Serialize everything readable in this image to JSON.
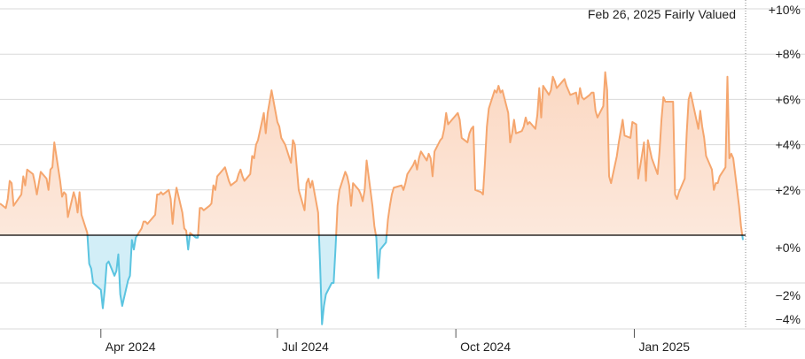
{
  "header": {
    "date": "Feb 26, 2025",
    "status": "Fairly Valued"
  },
  "colors": {
    "above_line": "#f5a66e",
    "above_fill_top": "#fbd8c2",
    "above_fill_bottom": "#fdf1ea",
    "below_line": "#5bc4e0",
    "below_fill": "#d2eef7",
    "grid": "#d9d9d9",
    "zero_line": "#000000"
  },
  "chart_data": {
    "type": "area",
    "title": "",
    "xlabel": "",
    "ylabel": "",
    "ylim": [
      -4,
      10
    ],
    "y_unit": "%",
    "grid": true,
    "y_ticks": [
      {
        "value": 10,
        "label": "+10%"
      },
      {
        "value": 8,
        "label": "+8%"
      },
      {
        "value": 6,
        "label": "+6%"
      },
      {
        "value": 4,
        "label": "+4%"
      },
      {
        "value": 2,
        "label": "+2%"
      },
      {
        "value": 0,
        "label": "+0%"
      },
      {
        "value": -2,
        "label": "−2%"
      },
      {
        "value": -4,
        "label": "−4%"
      }
    ],
    "x_ticks": [
      {
        "date": "2024-04-01",
        "label": "Apr 2024"
      },
      {
        "date": "2024-07-01",
        "label": "Jul 2024"
      },
      {
        "date": "2024-10-01",
        "label": "Oct 2024"
      },
      {
        "date": "2025-01-01",
        "label": "Jan 2025"
      }
    ],
    "series": [
      {
        "values": [
          [
            "2024-02-09",
            1.4
          ],
          [
            "2024-02-12",
            1.2
          ],
          [
            "2024-02-13",
            1.6
          ],
          [
            "2024-02-14",
            2.4
          ],
          [
            "2024-02-15",
            2.3
          ],
          [
            "2024-02-16",
            1.3
          ],
          [
            "2024-02-20",
            1.8
          ],
          [
            "2024-02-21",
            2.6
          ],
          [
            "2024-02-22",
            2.2
          ],
          [
            "2024-02-23",
            2.9
          ],
          [
            "2024-02-26",
            2.7
          ],
          [
            "2024-02-27",
            2.3
          ],
          [
            "2024-02-28",
            1.8
          ],
          [
            "2024-02-29",
            2.3
          ],
          [
            "2024-03-01",
            2.8
          ],
          [
            "2024-03-04",
            2.5
          ],
          [
            "2024-03-05",
            2.0
          ],
          [
            "2024-03-06",
            2.9
          ],
          [
            "2024-03-07",
            3.0
          ],
          [
            "2024-03-08",
            4.1
          ],
          [
            "2024-03-11",
            2.4
          ],
          [
            "2024-03-12",
            1.7
          ],
          [
            "2024-03-13",
            1.9
          ],
          [
            "2024-03-14",
            1.8
          ],
          [
            "2024-03-15",
            0.8
          ],
          [
            "2024-03-18",
            1.9
          ],
          [
            "2024-03-19",
            1.6
          ],
          [
            "2024-03-20",
            1.0
          ],
          [
            "2024-03-21",
            1.9
          ],
          [
            "2024-03-22",
            0.9
          ],
          [
            "2024-03-25",
            0.1
          ],
          [
            "2024-03-26",
            -1.2
          ],
          [
            "2024-03-27",
            -1.4
          ],
          [
            "2024-03-28",
            -2.0
          ],
          [
            "2024-04-01",
            -2.3
          ],
          [
            "2024-04-02",
            -3.1
          ],
          [
            "2024-04-03",
            -2.3
          ],
          [
            "2024-04-04",
            -1.2
          ],
          [
            "2024-04-05",
            -1.1
          ],
          [
            "2024-04-08",
            -1.7
          ],
          [
            "2024-04-09",
            -1.5
          ],
          [
            "2024-04-10",
            -0.8
          ],
          [
            "2024-04-11",
            -2.5
          ],
          [
            "2024-04-12",
            -3.0
          ],
          [
            "2024-04-15",
            -1.9
          ],
          [
            "2024-04-16",
            -1.7
          ],
          [
            "2024-04-17",
            -0.2
          ],
          [
            "2024-04-18",
            -0.6
          ],
          [
            "2024-04-19",
            -0.1
          ],
          [
            "2024-04-22",
            0.3
          ],
          [
            "2024-04-23",
            0.6
          ],
          [
            "2024-04-24",
            0.6
          ],
          [
            "2024-04-25",
            0.5
          ],
          [
            "2024-04-26",
            0.6
          ],
          [
            "2024-04-29",
            0.9
          ],
          [
            "2024-04-30",
            1.8
          ],
          [
            "2024-05-01",
            1.8
          ],
          [
            "2024-05-02",
            1.9
          ],
          [
            "2024-05-03",
            1.8
          ],
          [
            "2024-05-06",
            2.0
          ],
          [
            "2024-05-07",
            1.6
          ],
          [
            "2024-05-08",
            0.5
          ],
          [
            "2024-05-09",
            1.5
          ],
          [
            "2024-05-10",
            2.1
          ],
          [
            "2024-05-13",
            1.0
          ],
          [
            "2024-05-14",
            0.3
          ],
          [
            "2024-05-15",
            0.2
          ],
          [
            "2024-05-16",
            -0.6
          ],
          [
            "2024-05-17",
            0.1
          ],
          [
            "2024-05-20",
            -0.1
          ],
          [
            "2024-05-21",
            -0.1
          ],
          [
            "2024-05-22",
            1.2
          ],
          [
            "2024-05-23",
            1.2
          ],
          [
            "2024-05-24",
            1.1
          ],
          [
            "2024-05-27",
            1.3
          ],
          [
            "2024-05-28",
            1.4
          ],
          [
            "2024-05-29",
            2.2
          ],
          [
            "2024-05-30",
            2.0
          ],
          [
            "2024-05-31",
            2.6
          ],
          [
            "2024-06-03",
            2.9
          ],
          [
            "2024-06-04",
            3.0
          ],
          [
            "2024-06-05",
            2.7
          ],
          [
            "2024-06-06",
            2.4
          ],
          [
            "2024-06-07",
            2.2
          ],
          [
            "2024-06-10",
            2.4
          ],
          [
            "2024-06-11",
            2.7
          ],
          [
            "2024-06-12",
            2.9
          ],
          [
            "2024-06-13",
            2.6
          ],
          [
            "2024-06-14",
            2.4
          ],
          [
            "2024-06-17",
            2.7
          ],
          [
            "2024-06-18",
            3.5
          ],
          [
            "2024-06-19",
            3.4
          ],
          [
            "2024-06-20",
            4.0
          ],
          [
            "2024-06-21",
            4.2
          ],
          [
            "2024-06-24",
            5.4
          ],
          [
            "2024-06-25",
            4.5
          ],
          [
            "2024-06-26",
            5.4
          ],
          [
            "2024-06-27",
            5.9
          ],
          [
            "2024-06-28",
            6.4
          ],
          [
            "2024-07-01",
            5.0
          ],
          [
            "2024-07-02",
            4.8
          ],
          [
            "2024-07-03",
            4.3
          ],
          [
            "2024-07-05",
            4.0
          ],
          [
            "2024-07-08",
            3.2
          ],
          [
            "2024-07-09",
            4.2
          ],
          [
            "2024-07-10",
            4.0
          ],
          [
            "2024-07-11",
            3.0
          ],
          [
            "2024-07-12",
            2.0
          ],
          [
            "2024-07-15",
            1.1
          ],
          [
            "2024-07-16",
            2.3
          ],
          [
            "2024-07-17",
            2.5
          ],
          [
            "2024-07-18",
            2.1
          ],
          [
            "2024-07-19",
            2.4
          ],
          [
            "2024-07-22",
            1.0
          ],
          [
            "2024-07-23",
            -1.2
          ],
          [
            "2024-07-24",
            -3.8
          ],
          [
            "2024-07-25",
            -3.0
          ],
          [
            "2024-07-26",
            -2.5
          ],
          [
            "2024-07-29",
            -2.0
          ],
          [
            "2024-07-30",
            -2.0
          ],
          [
            "2024-07-31",
            -0.5
          ],
          [
            "2024-08-01",
            1.3
          ],
          [
            "2024-08-02",
            2.0
          ],
          [
            "2024-08-05",
            2.8
          ],
          [
            "2024-08-06",
            2.6
          ],
          [
            "2024-08-07",
            2.2
          ],
          [
            "2024-08-08",
            1.3
          ],
          [
            "2024-08-09",
            2.3
          ],
          [
            "2024-08-12",
            2.0
          ],
          [
            "2024-08-13",
            1.8
          ],
          [
            "2024-08-14",
            1.5
          ],
          [
            "2024-08-15",
            2.0
          ],
          [
            "2024-08-16",
            3.3
          ],
          [
            "2024-08-19",
            1.3
          ],
          [
            "2024-08-20",
            0.4
          ],
          [
            "2024-08-21",
            -0.1
          ],
          [
            "2024-08-22",
            -1.8
          ],
          [
            "2024-08-23",
            -0.6
          ],
          [
            "2024-08-26",
            -0.3
          ],
          [
            "2024-08-27",
            0.7
          ],
          [
            "2024-08-28",
            1.3
          ],
          [
            "2024-08-29",
            1.8
          ],
          [
            "2024-08-30",
            2.1
          ],
          [
            "2024-09-03",
            2.2
          ],
          [
            "2024-09-04",
            2.0
          ],
          [
            "2024-09-05",
            2.3
          ],
          [
            "2024-09-06",
            2.7
          ],
          [
            "2024-09-09",
            3.1
          ],
          [
            "2024-09-10",
            3.3
          ],
          [
            "2024-09-11",
            2.9
          ],
          [
            "2024-09-12",
            3.4
          ],
          [
            "2024-09-13",
            3.7
          ],
          [
            "2024-09-16",
            3.3
          ],
          [
            "2024-09-17",
            3.6
          ],
          [
            "2024-09-18",
            3.4
          ],
          [
            "2024-09-19",
            2.6
          ],
          [
            "2024-09-20",
            3.7
          ],
          [
            "2024-09-23",
            4.2
          ],
          [
            "2024-09-24",
            4.3
          ],
          [
            "2024-09-25",
            4.7
          ],
          [
            "2024-09-26",
            5.4
          ],
          [
            "2024-09-27",
            4.9
          ],
          [
            "2024-09-30",
            5.2
          ],
          [
            "2024-10-01",
            5.3
          ],
          [
            "2024-10-02",
            5.4
          ],
          [
            "2024-10-03",
            5.1
          ],
          [
            "2024-10-04",
            4.3
          ],
          [
            "2024-10-07",
            4.1
          ],
          [
            "2024-10-08",
            4.5
          ],
          [
            "2024-10-09",
            4.7
          ],
          [
            "2024-10-10",
            4.8
          ],
          [
            "2024-10-11",
            2.0
          ],
          [
            "2024-10-14",
            1.9
          ],
          [
            "2024-10-15",
            1.8
          ],
          [
            "2024-10-16",
            3.2
          ],
          [
            "2024-10-17",
            4.8
          ],
          [
            "2024-10-18",
            5.6
          ],
          [
            "2024-10-21",
            6.4
          ],
          [
            "2024-10-22",
            6.3
          ],
          [
            "2024-10-23",
            6.6
          ],
          [
            "2024-10-24",
            6.3
          ],
          [
            "2024-10-25",
            6.4
          ],
          [
            "2024-10-28",
            5.4
          ],
          [
            "2024-10-29",
            4.1
          ],
          [
            "2024-10-30",
            4.5
          ],
          [
            "2024-10-31",
            5.1
          ],
          [
            "2024-11-01",
            4.5
          ],
          [
            "2024-11-04",
            4.6
          ],
          [
            "2024-11-05",
            4.8
          ],
          [
            "2024-11-06",
            5.2
          ],
          [
            "2024-11-07",
            4.9
          ],
          [
            "2024-11-08",
            5.0
          ],
          [
            "2024-11-11",
            4.7
          ],
          [
            "2024-11-12",
            5.3
          ],
          [
            "2024-11-13",
            6.5
          ],
          [
            "2024-11-14",
            5.2
          ],
          [
            "2024-11-15",
            6.6
          ],
          [
            "2024-11-18",
            6.2
          ],
          [
            "2024-11-19",
            6.4
          ],
          [
            "2024-11-20",
            7.0
          ],
          [
            "2024-11-21",
            6.8
          ],
          [
            "2024-11-22",
            6.5
          ],
          [
            "2024-11-25",
            6.8
          ],
          [
            "2024-11-26",
            6.9
          ],
          [
            "2024-11-27",
            6.6
          ],
          [
            "2024-11-29",
            6.2
          ],
          [
            "2024-12-02",
            6.3
          ],
          [
            "2024-12-03",
            5.8
          ],
          [
            "2024-12-04",
            6.5
          ],
          [
            "2024-12-05",
            6.1
          ],
          [
            "2024-12-06",
            6.0
          ],
          [
            "2024-12-09",
            6.2
          ],
          [
            "2024-12-10",
            6.3
          ],
          [
            "2024-12-11",
            6.3
          ],
          [
            "2024-12-12",
            5.5
          ],
          [
            "2024-12-13",
            5.2
          ],
          [
            "2024-12-16",
            5.7
          ],
          [
            "2024-12-17",
            7.2
          ],
          [
            "2024-12-18",
            6.4
          ],
          [
            "2024-12-19",
            2.6
          ],
          [
            "2024-12-20",
            2.3
          ],
          [
            "2024-12-23",
            3.5
          ],
          [
            "2024-12-24",
            4.1
          ],
          [
            "2024-12-26",
            5.1
          ],
          [
            "2024-12-27",
            4.4
          ],
          [
            "2024-12-30",
            4.3
          ],
          [
            "2024-12-31",
            5.0
          ],
          [
            "2025-01-02",
            4.9
          ],
          [
            "2025-01-03",
            2.5
          ],
          [
            "2025-01-06",
            4.1
          ],
          [
            "2025-01-07",
            2.4
          ],
          [
            "2025-01-08",
            4.2
          ],
          [
            "2025-01-10",
            3.4
          ],
          [
            "2025-01-13",
            2.7
          ],
          [
            "2025-01-14",
            3.7
          ],
          [
            "2025-01-15",
            5.1
          ],
          [
            "2025-01-16",
            6.1
          ],
          [
            "2025-01-17",
            5.9
          ],
          [
            "2025-01-21",
            5.9
          ],
          [
            "2025-01-22",
            1.8
          ],
          [
            "2025-01-23",
            1.6
          ],
          [
            "2025-01-24",
            1.9
          ],
          [
            "2025-01-27",
            2.5
          ],
          [
            "2025-01-28",
            4.5
          ],
          [
            "2025-01-29",
            6.0
          ],
          [
            "2025-01-30",
            6.3
          ],
          [
            "2025-01-31",
            5.9
          ],
          [
            "2025-02-03",
            4.7
          ],
          [
            "2025-02-04",
            5.5
          ],
          [
            "2025-02-05",
            4.8
          ],
          [
            "2025-02-06",
            4.3
          ],
          [
            "2025-02-07",
            3.5
          ],
          [
            "2025-02-10",
            2.9
          ],
          [
            "2025-02-11",
            2.0
          ],
          [
            "2025-02-12",
            2.3
          ],
          [
            "2025-02-13",
            2.3
          ],
          [
            "2025-02-14",
            2.6
          ],
          [
            "2025-02-17",
            3.0
          ],
          [
            "2025-02-18",
            7.0
          ],
          [
            "2025-02-19",
            3.4
          ],
          [
            "2025-02-20",
            3.6
          ],
          [
            "2025-02-21",
            3.4
          ],
          [
            "2025-02-24",
            1.3
          ],
          [
            "2025-02-25",
            0.4
          ],
          [
            "2025-02-26",
            -0.2
          ]
        ]
      }
    ]
  }
}
